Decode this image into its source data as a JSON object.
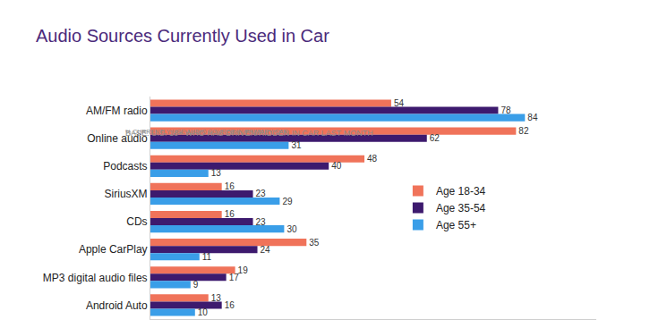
{
  "chart_data": {
    "type": "bar",
    "title": "Audio Sources Currently Used in Car",
    "subtitle": [
      "BASE: U.S. 18+ WHO HAS DRIVEN/RIDDEN IN CAR LAST MONTH",
      "% CURRENTLY USE AUDIO SOURCE IN PRIMARY CAR"
    ],
    "orientation": "horizontal",
    "categories": [
      "AM/FM radio",
      "Online audio",
      "Podcasts",
      "SiriusXM",
      "CDs",
      "Apple CarPlay",
      "MP3 digital audio files",
      "Android Auto"
    ],
    "series": [
      {
        "name": "Age 18-34",
        "color": "#f0735a",
        "values": [
          54,
          82,
          48,
          16,
          16,
          35,
          19,
          13
        ]
      },
      {
        "name": "Age 35-54",
        "color": "#3d1a6e",
        "values": [
          78,
          62,
          40,
          23,
          23,
          24,
          17,
          16
        ]
      },
      {
        "name": "Age 55+",
        "color": "#3a9ee8",
        "values": [
          84,
          31,
          13,
          29,
          30,
          11,
          9,
          10
        ]
      }
    ],
    "xlim": [
      0,
      100
    ],
    "grid": false,
    "legend": "right",
    "data_labels": true,
    "tick_labels": "y"
  }
}
